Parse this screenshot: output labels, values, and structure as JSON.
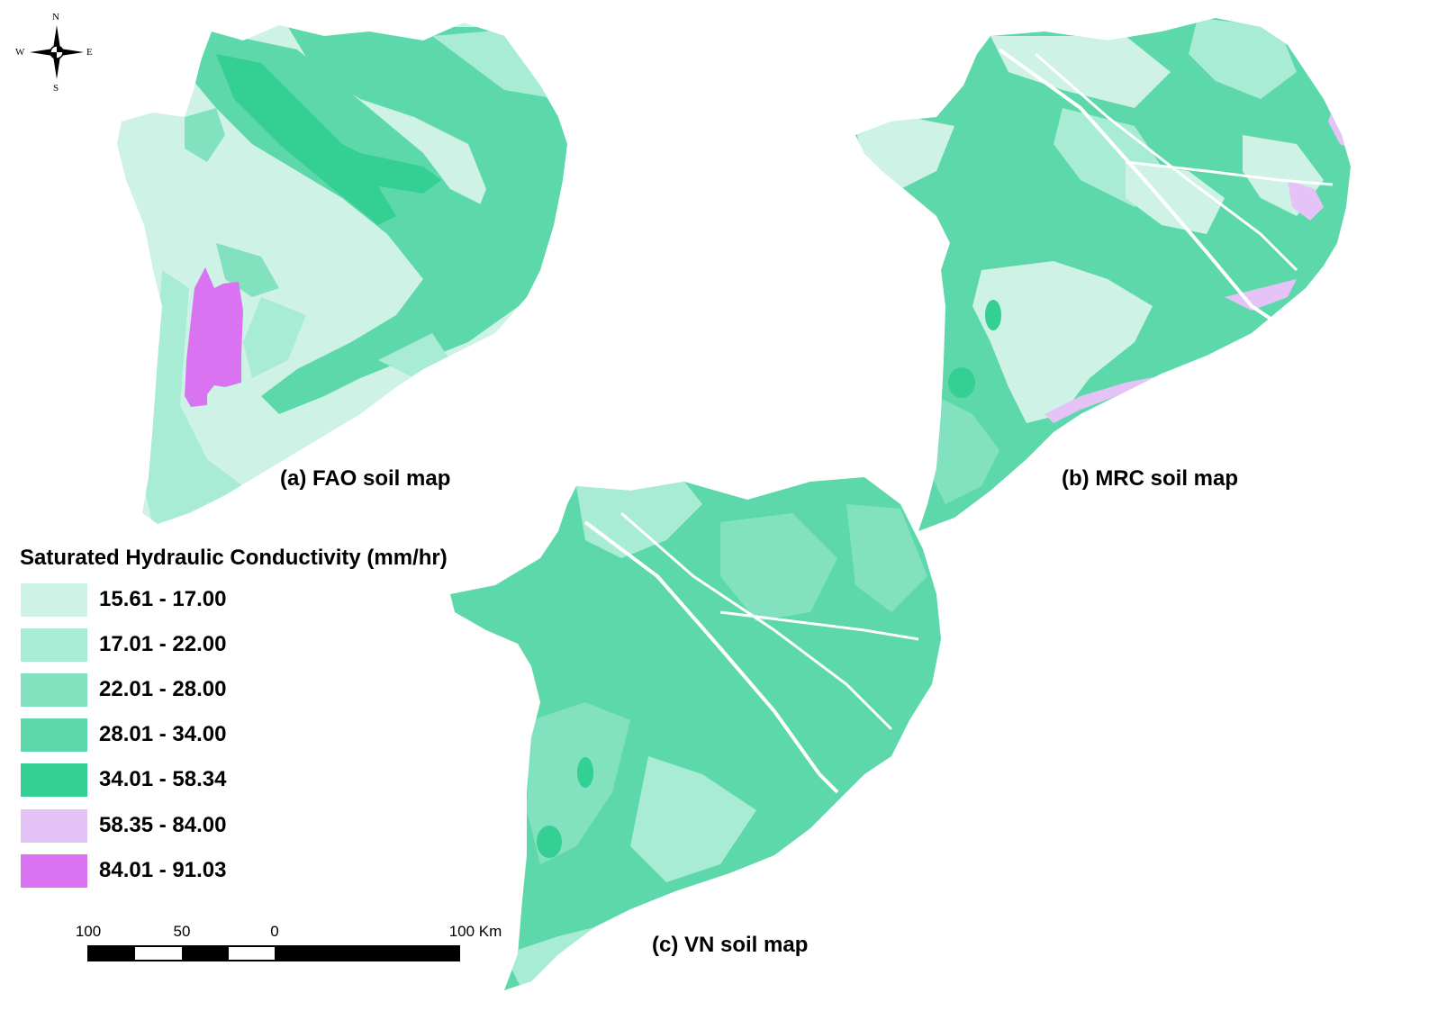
{
  "panels": {
    "a": {
      "label": "(a) FAO soil map"
    },
    "b": {
      "label": "(b) MRC soil map"
    },
    "c": {
      "label": "(c) VN soil map"
    }
  },
  "legend": {
    "title": "Saturated Hydraulic Conductivity (mm/hr)",
    "classes": [
      {
        "range": "15.61 - 17.00",
        "color": "#cef3e6"
      },
      {
        "range": "17.01 - 22.00",
        "color": "#a8ecd5"
      },
      {
        "range": "22.01 - 28.00",
        "color": "#82e2c0"
      },
      {
        "range": "28.01 - 34.00",
        "color": "#5cd8aa"
      },
      {
        "range": "34.01 - 58.34",
        "color": "#34cf92"
      },
      {
        "range": "58.35 - 84.00",
        "color": "#e6c3f7"
      },
      {
        "range": "84.01 - 91.03",
        "color": "#d973f2"
      }
    ]
  },
  "compass": {
    "north": "N",
    "south": "S",
    "east": "E",
    "west": "W"
  },
  "scale_bar": {
    "labels": [
      "100",
      "50",
      "0",
      "100 Km"
    ]
  }
}
